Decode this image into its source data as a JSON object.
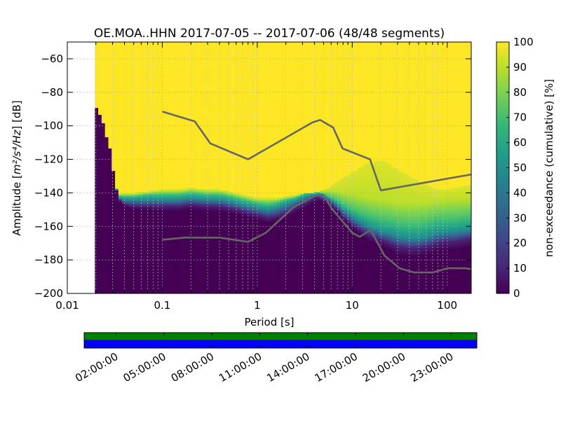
{
  "chart_data": {
    "type": "heatmap",
    "title": "OE.MOA..HHN   2017-07-05 -- 2017-07-06  (48/48 segments)",
    "xlabel": "Period [s]",
    "ylabel_prefix": "Amplitude [",
    "ylabel_math": "m²/s⁴/Hz",
    "ylabel_suffix": "] [dB]",
    "xscale": "log",
    "xlim": [
      0.01,
      179
    ],
    "ylim": [
      -200,
      -50
    ],
    "x_ticks": [
      {
        "value": 0.01,
        "label": "0.01"
      },
      {
        "value": 0.1,
        "label": "0.1"
      },
      {
        "value": 1,
        "label": "1"
      },
      {
        "value": 10,
        "label": "10"
      },
      {
        "value": 100,
        "label": "100"
      }
    ],
    "y_ticks": [
      {
        "value": -60,
        "label": "−60"
      },
      {
        "value": -80,
        "label": "−80"
      },
      {
        "value": -100,
        "label": "−100"
      },
      {
        "value": -120,
        "label": "−120"
      },
      {
        "value": -140,
        "label": "−140"
      },
      {
        "value": -160,
        "label": "−160"
      },
      {
        "value": -180,
        "label": "−180"
      },
      {
        "value": -200,
        "label": "−200"
      }
    ],
    "data_min_period": 0.0195,
    "grid": true,
    "colorbar": {
      "label": "non-exceedance (cumulative) [%]",
      "range": [
        0,
        100
      ],
      "ticks": [
        "0",
        "10",
        "20",
        "30",
        "40",
        "50",
        "60",
        "70",
        "80",
        "90",
        "100"
      ],
      "stops": [
        "#440154",
        "#482878",
        "#3e4989",
        "#31688e",
        "#26828e",
        "#1f9e89",
        "#35b779",
        "#6ece58",
        "#b5de2b",
        "#fde725"
      ]
    },
    "noise_model_high": {
      "name": "NHNM",
      "period": [
        0.1,
        0.22,
        0.32,
        0.8,
        3.8,
        4.6,
        6.3,
        7.9,
        15.4,
        20,
        179
      ],
      "db": [
        -91.5,
        -97.4,
        -110.5,
        -120,
        -98,
        -96.5,
        -101,
        -113.5,
        -120,
        -138.5,
        -129
      ]
    },
    "noise_model_low": {
      "name": "NLNM",
      "period": [
        0.1,
        0.17,
        0.4,
        0.8,
        1.24,
        2.4,
        4.3,
        5.0,
        6.0,
        10.0,
        12.0,
        15.6,
        21.9,
        31.6,
        45,
        70,
        101,
        154,
        179
      ],
      "db": [
        -168,
        -166.7,
        -166.7,
        -169.2,
        -163.7,
        -148.6,
        -141.1,
        -141.1,
        -149,
        -163.8,
        -166.2,
        -162.1,
        -177.5,
        -185,
        -187.5,
        -187.5,
        -185,
        -185,
        -185.5
      ]
    },
    "percentile_curves": {
      "period": [
        0.0195,
        0.0215,
        0.024,
        0.026,
        0.028,
        0.03,
        0.032,
        0.035,
        0.04,
        0.05,
        0.07,
        0.1,
        0.15,
        0.2,
        0.3,
        0.4,
        0.5,
        0.7,
        1.0,
        1.3,
        1.6,
        2.0,
        2.5,
        3.0,
        3.5,
        4.0,
        4.5,
        5.0,
        6.0,
        7.0,
        8.0,
        10.0,
        12.0,
        15.0,
        20.0,
        25.0,
        30.0,
        40.0,
        50.0,
        60.0,
        70.0,
        80.0,
        100.0,
        120.0,
        150.0,
        179.0
      ],
      "p0": [
        -87,
        -92,
        -99,
        -107,
        -113,
        -124,
        -135,
        -145,
        -148,
        -150,
        -150,
        -151,
        -151,
        -150,
        -151,
        -151,
        -152,
        -154,
        -156,
        -158,
        -157,
        -155,
        -152,
        -150,
        -148,
        -146,
        -145,
        -146,
        -149,
        -152,
        -156,
        -161,
        -165,
        -169,
        -172,
        -174,
        -177,
        -178,
        -178,
        -177,
        -176,
        -175,
        -174,
        -174,
        -173,
        -172
      ],
      "p10": [
        -87,
        -92,
        -99,
        -107,
        -113,
        -124,
        -135,
        -144,
        -147,
        -148,
        -148,
        -148,
        -148,
        -147,
        -148,
        -148,
        -149,
        -151,
        -153,
        -155,
        -154,
        -152,
        -149,
        -147,
        -145,
        -143,
        -143,
        -144,
        -147,
        -150,
        -154,
        -159,
        -162,
        -165,
        -168,
        -170,
        -172,
        -173,
        -173,
        -172,
        -171,
        -170,
        -169,
        -169,
        -168,
        -167
      ],
      "p50": [
        -87,
        -92,
        -99,
        -107,
        -113,
        -124,
        -135,
        -143,
        -144,
        -144,
        -144,
        -144,
        -144,
        -143,
        -144,
        -144,
        -145,
        -147,
        -149,
        -150,
        -149,
        -147,
        -145,
        -143,
        -142,
        -141,
        -141,
        -142,
        -144,
        -147,
        -150,
        -154,
        -157,
        -160,
        -163,
        -164,
        -166,
        -167,
        -167,
        -166,
        -165,
        -164,
        -163,
        -163,
        -162,
        -162
      ],
      "p70": [
        -87,
        -92,
        -99,
        -107,
        -113,
        -124,
        -135,
        -142,
        -142,
        -142,
        -141,
        -141,
        -141,
        -140,
        -141,
        -141,
        -142,
        -144,
        -146,
        -147,
        -146,
        -144,
        -143,
        -141,
        -140,
        -140,
        -140,
        -141,
        -143,
        -145,
        -147,
        -150,
        -152,
        -154,
        -156,
        -157,
        -158,
        -159,
        -159,
        -158,
        -157,
        -156,
        -156,
        -156,
        -155,
        -155
      ],
      "p90": [
        -87,
        -92,
        -99,
        -107,
        -113,
        -124,
        -135,
        -141,
        -141,
        -141,
        -140,
        -139,
        -139,
        -138,
        -139,
        -139,
        -140,
        -142,
        -144,
        -144,
        -144,
        -143,
        -142,
        -141,
        -140,
        -140,
        -139,
        -139,
        -139,
        -139,
        -140,
        -141,
        -142,
        -143,
        -144,
        -145,
        -146,
        -146,
        -146,
        -146,
        -145,
        -145,
        -144,
        -144,
        -144,
        -143
      ],
      "p95": [
        -87,
        -92,
        -99,
        -107,
        -113,
        -124,
        -135,
        -140,
        -140,
        -140,
        -139,
        -138,
        -138,
        -137,
        -138,
        -138,
        -139,
        -141,
        -143,
        -143,
        -143,
        -142,
        -141,
        -140,
        -140,
        -140,
        -139,
        -138,
        -136,
        -133,
        -131,
        -128,
        -125,
        -122,
        -121,
        -123,
        -126,
        -130,
        -133,
        -135,
        -137,
        -138,
        -138,
        -137,
        -136,
        -135
      ]
    },
    "coverage": {
      "time_ticks": [
        "02:00:00",
        "05:00:00",
        "08:00:00",
        "11:00:00",
        "14:00:00",
        "17:00:00",
        "20:00:00",
        "23:00:00"
      ],
      "time_range_hours": [
        0,
        24.6
      ],
      "time_ticks_hours": [
        2,
        5,
        8,
        11,
        14,
        17,
        20,
        23
      ],
      "data_color": "#0000ff",
      "processed_color": "#008000"
    }
  }
}
